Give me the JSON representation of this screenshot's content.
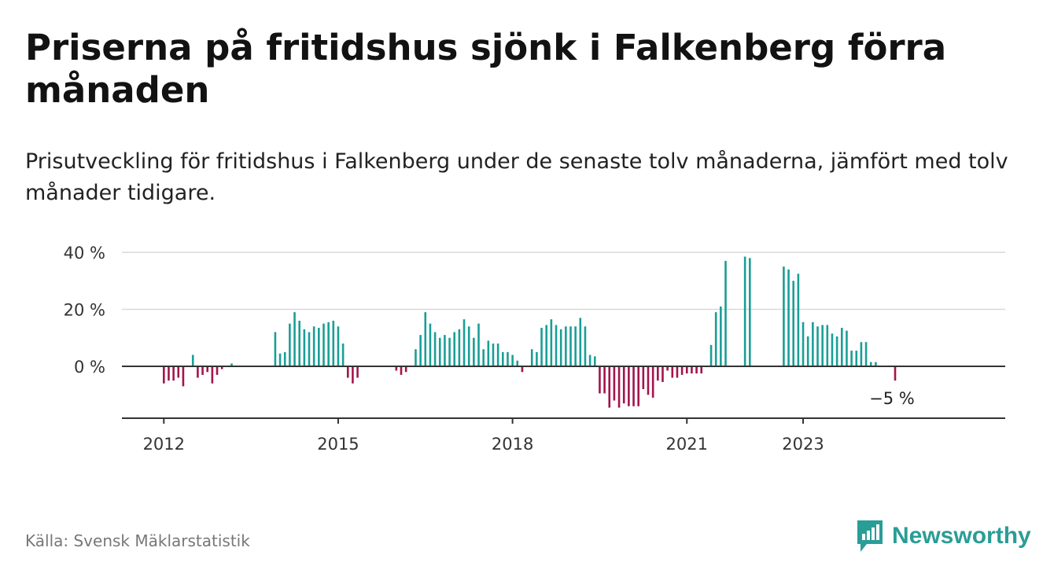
{
  "title": "Priserna på fritidshus sjönk i Falkenberg förra månaden",
  "subtitle": "Prisutveckling för fritidshus i Falkenberg under de senaste tolv månaderna, jämfört med tolv månader tidigare.",
  "source": "Källa: Svensk Mäklarstatistik",
  "brand": "Newsworthy",
  "colors": {
    "positive": "#1a9e96",
    "negative": "#a3144a",
    "grid": "#d9d9d9",
    "axis": "#333333"
  },
  "chart_data": {
    "type": "bar",
    "ylim": [
      -18,
      40
    ],
    "yticks": [
      0,
      20,
      40
    ],
    "ytick_labels": [
      "0 %",
      "20 %",
      "40 %"
    ],
    "xtick_labels": [
      "2012",
      "2015",
      "2018",
      "2021",
      "2023"
    ],
    "end_label": "−5 %",
    "grid": true,
    "series": [
      {
        "values": [
          -6,
          -5,
          -5,
          -4,
          -7,
          null,
          4,
          -4,
          -3,
          -2,
          -6,
          -3,
          -1,
          null,
          1,
          null,
          null,
          null,
          null,
          null,
          null,
          null,
          null,
          12,
          4.5,
          5,
          15,
          19,
          16,
          13,
          12,
          14,
          13.5,
          15,
          15.5,
          16,
          14,
          8,
          -4,
          -6,
          -4,
          null,
          null,
          null,
          null,
          null,
          null,
          null,
          -1.5,
          -3,
          -2,
          null,
          6,
          11,
          19,
          15,
          12,
          10,
          11,
          10,
          12,
          13,
          16.5,
          14,
          10,
          15,
          6,
          9,
          8,
          8,
          5,
          5,
          4,
          2,
          -2,
          null,
          6,
          5,
          13.5,
          14.5,
          16.5,
          14.5,
          13,
          14,
          14,
          14,
          17,
          14,
          4,
          3.5,
          -9.5,
          -9.5,
          -14.5,
          -12,
          -14.5,
          -13,
          -14,
          -14,
          -14,
          -8,
          -10,
          -11,
          -5,
          -5.5,
          -1.5,
          -4,
          -4,
          -3,
          -2.5,
          -2.5,
          -2.5,
          -2.5,
          null,
          7.5,
          19,
          21,
          37,
          null,
          null,
          null,
          38.5,
          38,
          null,
          null,
          null,
          null,
          null,
          null,
          35,
          34,
          30,
          32.5,
          15.5,
          10.5,
          15.5,
          14,
          14.5,
          14.5,
          11.5,
          10.5,
          13.5,
          12.5,
          5.5,
          5.5,
          8.5,
          8.5,
          1.5,
          1.5,
          null,
          null,
          null,
          -5
        ]
      }
    ]
  }
}
